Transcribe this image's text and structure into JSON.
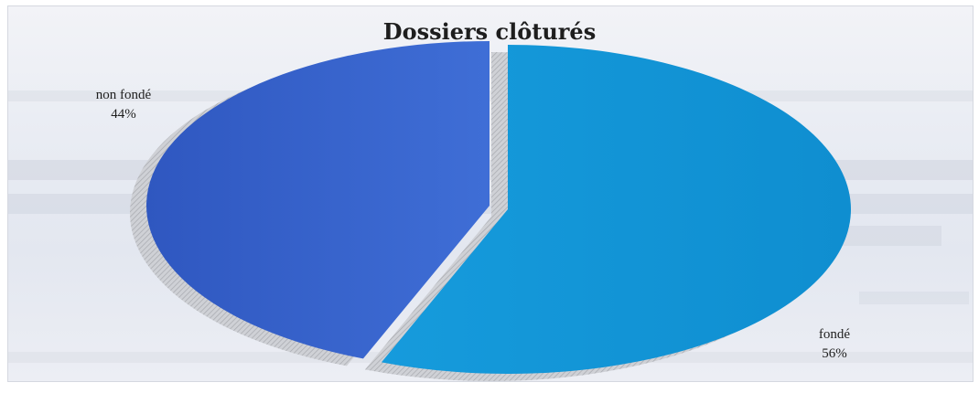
{
  "chart_data": {
    "type": "pie",
    "title": "Dossiers clôturés",
    "slices": [
      {
        "label": "non fondé",
        "value": 44,
        "value_label": "44%",
        "color": "#3560c9"
      },
      {
        "label": "fondé",
        "value": 56,
        "value_label": "56%",
        "color": "#1596d8"
      }
    ],
    "style": "3d-exploded",
    "legend": "none"
  }
}
